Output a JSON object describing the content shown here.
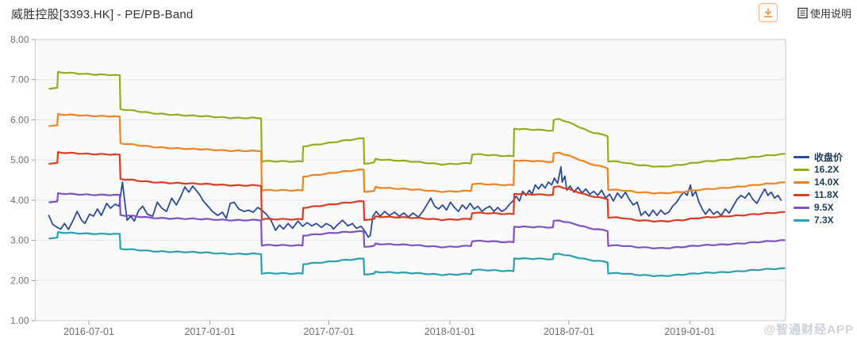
{
  "header": {
    "title": "威胜控股[3393.HK] - PE/PB-Band",
    "help_label": "使用说明"
  },
  "watermark": "@智通财经APP",
  "colors": {
    "close": "#2a4a9a",
    "band_16_2": "#94ac20",
    "band_14_0": "#ef8321",
    "band_11_8": "#da3b21",
    "band_9_5": "#7e52c4",
    "band_7_3": "#2aa0af",
    "grid": "#e2e2e2",
    "plot_border": "#c9c9c9",
    "plot_bg": "#fafafa",
    "axis_text": "#707070",
    "legend_text": "#1d3c55"
  },
  "chart_data": {
    "type": "line",
    "title": "威胜控股[3393.HK] - PE/PB-Band",
    "ylim": [
      1,
      8
    ],
    "grid": true,
    "legend_position": "right",
    "y_axis": {
      "tick_values": [
        8,
        7,
        6,
        5,
        4,
        3,
        2,
        1
      ],
      "tick_labels": [
        "8.00",
        "7.00",
        "6.00",
        "5.00",
        "4.00",
        "3.00",
        "2.00",
        "1.00"
      ]
    },
    "x_axis": {
      "tick_labels": [
        "2016-07-01",
        "2017-01-01",
        "2017-07-01",
        "2018-01-01",
        "2018-07-01",
        "2019-01-01"
      ],
      "range": [
        "2016-05-01",
        "2019-05-25"
      ]
    },
    "band_dates": [
      "2016-05-02",
      "2016-05-14",
      "2016-05-15",
      "2016-06-15",
      "2016-08-01",
      "2016-08-17",
      "2016-08-18",
      "2016-10-01",
      "2016-12-01",
      "2017-02-01",
      "2017-03-20",
      "2017-03-21",
      "2017-05-22",
      "2017-05-23",
      "2017-07-01",
      "2017-08-23",
      "2017-08-24",
      "2017-09-08",
      "2017-09-10",
      "2017-10-15",
      "2017-12-20",
      "2018-02-02",
      "2018-02-04",
      "2018-03-01",
      "2018-04-08",
      "2018-04-09",
      "2018-05-15",
      "2018-06-07",
      "2018-06-08",
      "2018-06-16",
      "2018-07-10",
      "2018-08-01",
      "2018-08-29",
      "2018-08-30",
      "2018-09-20",
      "2018-10-10",
      "2018-11-19",
      "2018-12-20",
      "2019-01-20",
      "2019-03-01",
      "2019-04-15",
      "2019-05-25"
    ],
    "series": [
      {
        "name": "收盘价",
        "kind": "price",
        "color": "#2a4a9a",
        "points": [
          [
            "2016-05-01",
            3.62
          ],
          [
            "2016-05-07",
            3.4
          ],
          [
            "2016-05-13",
            3.33
          ],
          [
            "2016-05-19",
            3.28
          ],
          [
            "2016-05-25",
            3.42
          ],
          [
            "2016-05-31",
            3.27
          ],
          [
            "2016-06-07",
            3.5
          ],
          [
            "2016-06-13",
            3.72
          ],
          [
            "2016-06-20",
            3.5
          ],
          [
            "2016-06-25",
            3.42
          ],
          [
            "2016-07-02",
            3.65
          ],
          [
            "2016-07-08",
            3.6
          ],
          [
            "2016-07-14",
            3.78
          ],
          [
            "2016-07-20",
            3.62
          ],
          [
            "2016-07-28",
            3.92
          ],
          [
            "2016-08-03",
            3.8
          ],
          [
            "2016-08-10",
            3.9
          ],
          [
            "2016-08-16",
            3.85
          ],
          [
            "2016-08-21",
            4.45
          ],
          [
            "2016-08-24",
            4.05
          ],
          [
            "2016-08-28",
            3.5
          ],
          [
            "2016-09-03",
            3.6
          ],
          [
            "2016-09-08",
            3.48
          ],
          [
            "2016-09-15",
            3.75
          ],
          [
            "2016-09-21",
            3.85
          ],
          [
            "2016-09-28",
            3.65
          ],
          [
            "2016-10-06",
            3.6
          ],
          [
            "2016-10-13",
            3.95
          ],
          [
            "2016-10-20",
            3.8
          ],
          [
            "2016-10-27",
            3.72
          ],
          [
            "2016-11-04",
            4.05
          ],
          [
            "2016-11-11",
            3.88
          ],
          [
            "2016-11-18",
            4.1
          ],
          [
            "2016-11-24",
            4.33
          ],
          [
            "2016-11-30",
            4.2
          ],
          [
            "2016-12-06",
            4.35
          ],
          [
            "2016-12-11",
            4.25
          ],
          [
            "2016-12-16",
            4.15
          ],
          [
            "2016-12-22",
            3.98
          ],
          [
            "2016-12-29",
            3.85
          ],
          [
            "2017-01-05",
            3.72
          ],
          [
            "2017-01-13",
            3.62
          ],
          [
            "2017-01-20",
            3.7
          ],
          [
            "2017-01-26",
            3.55
          ],
          [
            "2017-02-01",
            3.92
          ],
          [
            "2017-02-07",
            3.95
          ],
          [
            "2017-02-14",
            3.78
          ],
          [
            "2017-02-22",
            3.72
          ],
          [
            "2017-03-01",
            3.75
          ],
          [
            "2017-03-08",
            3.7
          ],
          [
            "2017-03-15",
            3.82
          ],
          [
            "2017-03-21",
            3.75
          ],
          [
            "2017-03-28",
            3.65
          ],
          [
            "2017-04-04",
            3.5
          ],
          [
            "2017-04-11",
            3.25
          ],
          [
            "2017-04-17",
            3.38
          ],
          [
            "2017-04-23",
            3.28
          ],
          [
            "2017-04-30",
            3.42
          ],
          [
            "2017-05-07",
            3.3
          ],
          [
            "2017-05-15",
            3.48
          ],
          [
            "2017-05-22",
            3.35
          ],
          [
            "2017-05-29",
            3.44
          ],
          [
            "2017-06-05",
            3.36
          ],
          [
            "2017-06-12",
            3.42
          ],
          [
            "2017-06-20",
            3.32
          ],
          [
            "2017-06-27",
            3.42
          ],
          [
            "2017-07-04",
            3.36
          ],
          [
            "2017-07-08",
            3.28
          ],
          [
            "2017-07-15",
            3.4
          ],
          [
            "2017-07-22",
            3.5
          ],
          [
            "2017-07-30",
            3.36
          ],
          [
            "2017-08-06",
            3.42
          ],
          [
            "2017-08-12",
            3.3
          ],
          [
            "2017-08-19",
            3.35
          ],
          [
            "2017-08-25",
            3.22
          ],
          [
            "2017-08-30",
            3.08
          ],
          [
            "2017-09-02",
            3.12
          ],
          [
            "2017-09-06",
            3.6
          ],
          [
            "2017-09-11",
            3.72
          ],
          [
            "2017-09-17",
            3.6
          ],
          [
            "2017-09-24",
            3.72
          ],
          [
            "2017-10-01",
            3.62
          ],
          [
            "2017-10-09",
            3.7
          ],
          [
            "2017-10-16",
            3.6
          ],
          [
            "2017-10-23",
            3.68
          ],
          [
            "2017-10-30",
            3.58
          ],
          [
            "2017-11-06",
            3.68
          ],
          [
            "2017-11-14",
            3.58
          ],
          [
            "2017-11-21",
            3.72
          ],
          [
            "2017-11-27",
            3.88
          ],
          [
            "2017-12-03",
            4.05
          ],
          [
            "2017-12-09",
            3.85
          ],
          [
            "2017-12-15",
            3.78
          ],
          [
            "2017-12-21",
            3.88
          ],
          [
            "2017-12-27",
            3.75
          ],
          [
            "2018-01-02",
            3.95
          ],
          [
            "2018-01-08",
            3.82
          ],
          [
            "2018-01-14",
            3.72
          ],
          [
            "2018-01-20",
            3.88
          ],
          [
            "2018-01-26",
            3.78
          ],
          [
            "2018-02-01",
            3.92
          ],
          [
            "2018-02-07",
            3.78
          ],
          [
            "2018-02-13",
            3.85
          ],
          [
            "2018-02-19",
            3.72
          ],
          [
            "2018-02-25",
            3.8
          ],
          [
            "2018-03-03",
            3.85
          ],
          [
            "2018-03-09",
            3.72
          ],
          [
            "2018-03-15",
            3.82
          ],
          [
            "2018-03-21",
            3.72
          ],
          [
            "2018-03-27",
            3.78
          ],
          [
            "2018-04-02",
            3.9
          ],
          [
            "2018-04-07",
            3.98
          ],
          [
            "2018-04-12",
            4.1
          ],
          [
            "2018-04-17",
            3.98
          ],
          [
            "2018-04-22",
            4.22
          ],
          [
            "2018-04-27",
            4.12
          ],
          [
            "2018-05-02",
            4.25
          ],
          [
            "2018-05-06",
            4.15
          ],
          [
            "2018-05-11",
            4.38
          ],
          [
            "2018-05-16",
            4.28
          ],
          [
            "2018-05-21",
            4.4
          ],
          [
            "2018-05-26",
            4.3
          ],
          [
            "2018-05-31",
            4.45
          ],
          [
            "2018-06-05",
            4.38
          ],
          [
            "2018-06-09",
            4.55
          ],
          [
            "2018-06-14",
            4.42
          ],
          [
            "2018-06-19",
            4.83
          ],
          [
            "2018-06-21",
            4.45
          ],
          [
            "2018-06-25",
            4.6
          ],
          [
            "2018-06-28",
            4.25
          ],
          [
            "2018-07-03",
            4.35
          ],
          [
            "2018-07-09",
            4.2
          ],
          [
            "2018-07-15",
            4.32
          ],
          [
            "2018-07-21",
            4.18
          ],
          [
            "2018-07-27",
            4.28
          ],
          [
            "2018-08-02",
            4.15
          ],
          [
            "2018-08-08",
            4.22
          ],
          [
            "2018-08-14",
            4.12
          ],
          [
            "2018-08-20",
            4.25
          ],
          [
            "2018-08-26",
            4.05
          ],
          [
            "2018-09-01",
            4.15
          ],
          [
            "2018-09-07",
            3.98
          ],
          [
            "2018-09-13",
            4.18
          ],
          [
            "2018-09-19",
            4.05
          ],
          [
            "2018-09-25",
            4.2
          ],
          [
            "2018-10-01",
            4.02
          ],
          [
            "2018-10-07",
            3.88
          ],
          [
            "2018-10-13",
            3.95
          ],
          [
            "2018-10-19",
            3.62
          ],
          [
            "2018-10-25",
            3.72
          ],
          [
            "2018-10-31",
            3.6
          ],
          [
            "2018-11-06",
            3.75
          ],
          [
            "2018-11-12",
            3.62
          ],
          [
            "2018-11-18",
            3.75
          ],
          [
            "2018-11-24",
            3.65
          ],
          [
            "2018-11-30",
            3.7
          ],
          [
            "2018-12-06",
            3.85
          ],
          [
            "2018-12-12",
            3.95
          ],
          [
            "2018-12-18",
            4.1
          ],
          [
            "2018-12-23",
            4.2
          ],
          [
            "2018-12-28",
            4.12
          ],
          [
            "2019-01-02",
            4.38
          ],
          [
            "2019-01-05",
            4.1
          ],
          [
            "2019-01-10",
            4.22
          ],
          [
            "2019-01-15",
            3.95
          ],
          [
            "2019-01-20",
            3.78
          ],
          [
            "2019-01-25",
            3.65
          ],
          [
            "2019-01-31",
            3.78
          ],
          [
            "2019-02-06",
            3.65
          ],
          [
            "2019-02-12",
            3.72
          ],
          [
            "2019-02-18",
            3.62
          ],
          [
            "2019-02-24",
            3.78
          ],
          [
            "2019-03-02",
            3.68
          ],
          [
            "2019-03-08",
            3.85
          ],
          [
            "2019-03-14",
            4.02
          ],
          [
            "2019-03-20",
            4.12
          ],
          [
            "2019-03-26",
            4.05
          ],
          [
            "2019-04-01",
            4.18
          ],
          [
            "2019-04-07",
            4.02
          ],
          [
            "2019-04-13",
            3.92
          ],
          [
            "2019-04-19",
            4.1
          ],
          [
            "2019-04-25",
            4.28
          ],
          [
            "2019-04-30",
            4.12
          ],
          [
            "2019-05-05",
            4.2
          ],
          [
            "2019-05-10",
            4.05
          ],
          [
            "2019-05-15",
            4.12
          ],
          [
            "2019-05-20",
            4.0
          ]
        ]
      },
      {
        "name": "16.2X",
        "kind": "band",
        "multiple": 16.2,
        "color": "#94ac20",
        "values": [
          6.78,
          6.78,
          7.18,
          7.16,
          7.12,
          7.1,
          6.26,
          6.18,
          6.1,
          6.06,
          6.04,
          4.96,
          4.97,
          5.35,
          5.42,
          5.55,
          4.92,
          4.94,
          5.03,
          4.98,
          4.9,
          4.92,
          5.14,
          5.12,
          5.1,
          5.79,
          5.75,
          5.72,
          5.98,
          6.02,
          5.88,
          5.72,
          5.6,
          4.97,
          4.94,
          4.88,
          4.84,
          4.88,
          4.95,
          5.02,
          5.08,
          5.15
        ]
      },
      {
        "name": "14.0X",
        "kind": "band",
        "multiple": 14.0,
        "color": "#ef8321",
        "values": [
          5.85,
          5.85,
          6.13,
          6.12,
          6.09,
          6.07,
          5.41,
          5.34,
          5.27,
          5.24,
          5.22,
          4.24,
          4.25,
          4.6,
          4.66,
          4.77,
          4.22,
          4.23,
          4.33,
          4.28,
          4.22,
          4.23,
          4.4,
          4.39,
          4.38,
          5.0,
          4.97,
          4.94,
          5.15,
          5.18,
          5.06,
          4.92,
          4.8,
          4.26,
          4.24,
          4.2,
          4.18,
          4.2,
          4.26,
          4.32,
          4.38,
          4.44
        ]
      },
      {
        "name": "11.8X",
        "kind": "band",
        "multiple": 11.8,
        "color": "#da3b21",
        "values": [
          4.91,
          4.91,
          5.18,
          5.17,
          5.14,
          5.12,
          4.52,
          4.46,
          4.41,
          4.38,
          4.36,
          3.52,
          3.53,
          3.82,
          3.88,
          3.98,
          3.52,
          3.53,
          3.6,
          3.57,
          3.52,
          3.53,
          3.68,
          3.67,
          3.66,
          4.17,
          4.14,
          4.12,
          4.31,
          4.34,
          4.23,
          4.12,
          4.03,
          3.57,
          3.55,
          3.5,
          3.48,
          3.5,
          3.56,
          3.61,
          3.65,
          3.7
        ]
      },
      {
        "name": "9.5X",
        "kind": "band",
        "multiple": 9.5,
        "color": "#7e52c4",
        "values": [
          3.95,
          3.95,
          4.16,
          4.15,
          4.13,
          4.12,
          3.62,
          3.57,
          3.53,
          3.51,
          3.5,
          2.87,
          2.88,
          3.13,
          3.17,
          3.23,
          2.85,
          2.86,
          2.92,
          2.89,
          2.84,
          2.86,
          2.98,
          2.97,
          2.96,
          3.35,
          3.33,
          3.31,
          3.47,
          3.49,
          3.41,
          3.31,
          3.24,
          2.87,
          2.86,
          2.83,
          2.81,
          2.83,
          2.87,
          2.91,
          2.95,
          3.0
        ]
      },
      {
        "name": "7.3X",
        "kind": "band",
        "multiple": 7.3,
        "color": "#2aa0af",
        "values": [
          3.05,
          3.05,
          3.19,
          3.18,
          3.16,
          3.15,
          2.78,
          2.74,
          2.7,
          2.67,
          2.66,
          2.17,
          2.18,
          2.42,
          2.46,
          2.55,
          2.16,
          2.17,
          2.22,
          2.19,
          2.15,
          2.16,
          2.26,
          2.25,
          2.24,
          2.56,
          2.54,
          2.52,
          2.64,
          2.66,
          2.59,
          2.52,
          2.46,
          2.18,
          2.17,
          2.14,
          2.12,
          2.14,
          2.18,
          2.22,
          2.26,
          2.3
        ]
      }
    ]
  }
}
